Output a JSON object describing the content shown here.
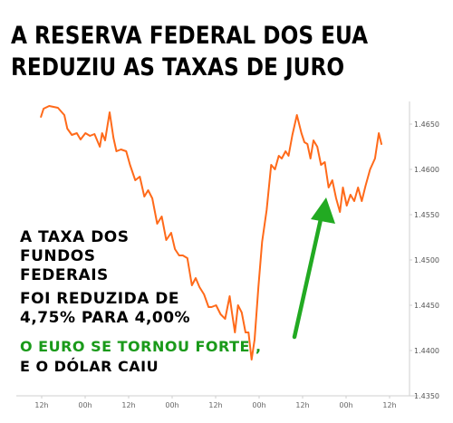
{
  "headline": {
    "line1": "A RESERVA FEDERAL DOS EUA",
    "line2": "REDUZIU AS TAXAS DE JURO"
  },
  "annotations": {
    "rate_lines": [
      "A TAXA DOS",
      "FUNDOS",
      "FEDERAIS"
    ],
    "cut_lines": [
      "FOI REDUZIDA DE",
      "4,75% PARA 4,00%"
    ],
    "euro_line": "O EURO SE TORNOU FORTE ,",
    "dollar_line": "E O DÓLAR CAIU"
  },
  "colors": {
    "line": "#ff6a1a",
    "arrow": "#22aa22",
    "euro_text": "#1a9a1a",
    "axis": "#cfcfcf"
  },
  "chart_data": {
    "type": "line",
    "title": "",
    "xlabel": "",
    "ylabel": "",
    "x_tick_labels": [
      "12h",
      "00h",
      "12h",
      "00h",
      "12h",
      "00h",
      "12h",
      "00h",
      "12h"
    ],
    "y_tick_labels": [
      "1.4650",
      "1.4600",
      "1.4550",
      "1.4500",
      "1.4450",
      "1.4400",
      "1.4350"
    ],
    "ylim": [
      1.435,
      1.4675
    ],
    "x_range": [
      0,
      9
    ],
    "series": [
      {
        "x": [
          0.1,
          0.17,
          0.32,
          0.55,
          0.72,
          0.8,
          0.92,
          1.05,
          1.15,
          1.28,
          1.4,
          1.52,
          1.66,
          1.72,
          1.8,
          1.92,
          2.02,
          2.1,
          2.22,
          2.36,
          2.46,
          2.6,
          2.72,
          2.84,
          2.94,
          3.05,
          3.18,
          3.3,
          3.42,
          3.55,
          3.65,
          3.76,
          3.86,
          3.98,
          4.1,
          4.2,
          4.3,
          4.42,
          4.54,
          4.62,
          4.74,
          4.86,
          4.98,
          5.1,
          5.16,
          5.24,
          5.32,
          5.42,
          5.52,
          5.6,
          5.68,
          5.76,
          5.86,
          5.96,
          6.08,
          6.2,
          6.3,
          6.4,
          6.48,
          6.58,
          6.66,
          6.76,
          6.88,
          7.0,
          7.08,
          7.16,
          7.24,
          7.32,
          7.42,
          7.52,
          7.62,
          7.72,
          7.82,
          7.92,
          8.02,
          8.1,
          8.2,
          8.3,
          8.4,
          8.5,
          8.6,
          8.7,
          8.82,
          8.95,
          9.05,
          9.12
        ],
        "values": [
          1.4658,
          1.4667,
          1.467,
          1.4668,
          1.466,
          1.4645,
          1.4638,
          1.464,
          1.4633,
          1.464,
          1.4637,
          1.4639,
          1.4625,
          1.464,
          1.4632,
          1.4663,
          1.4635,
          1.462,
          1.4622,
          1.462,
          1.4605,
          1.4588,
          1.4592,
          1.457,
          1.4577,
          1.4568,
          1.454,
          1.4548,
          1.4522,
          1.453,
          1.4512,
          1.4505,
          1.4505,
          1.4502,
          1.4472,
          1.448,
          1.447,
          1.4462,
          1.4448,
          1.4448,
          1.445,
          1.444,
          1.4435,
          1.446,
          1.4442,
          1.442,
          1.445,
          1.4442,
          1.442,
          1.442,
          1.439,
          1.4412,
          1.447,
          1.452,
          1.4555,
          1.4605,
          1.46,
          1.4615,
          1.4612,
          1.462,
          1.4615,
          1.4638,
          1.466,
          1.464,
          1.463,
          1.4628,
          1.4612,
          1.4632,
          1.4625,
          1.4605,
          1.4608,
          1.458,
          1.4588,
          1.4568,
          1.4553,
          1.458,
          1.456,
          1.4572,
          1.4565,
          1.458,
          1.4565,
          1.4582,
          1.46,
          1.4612,
          1.464,
          1.4628
        ],
        "color": "#ff6a1a"
      }
    ],
    "grid": false,
    "legend": "none"
  }
}
